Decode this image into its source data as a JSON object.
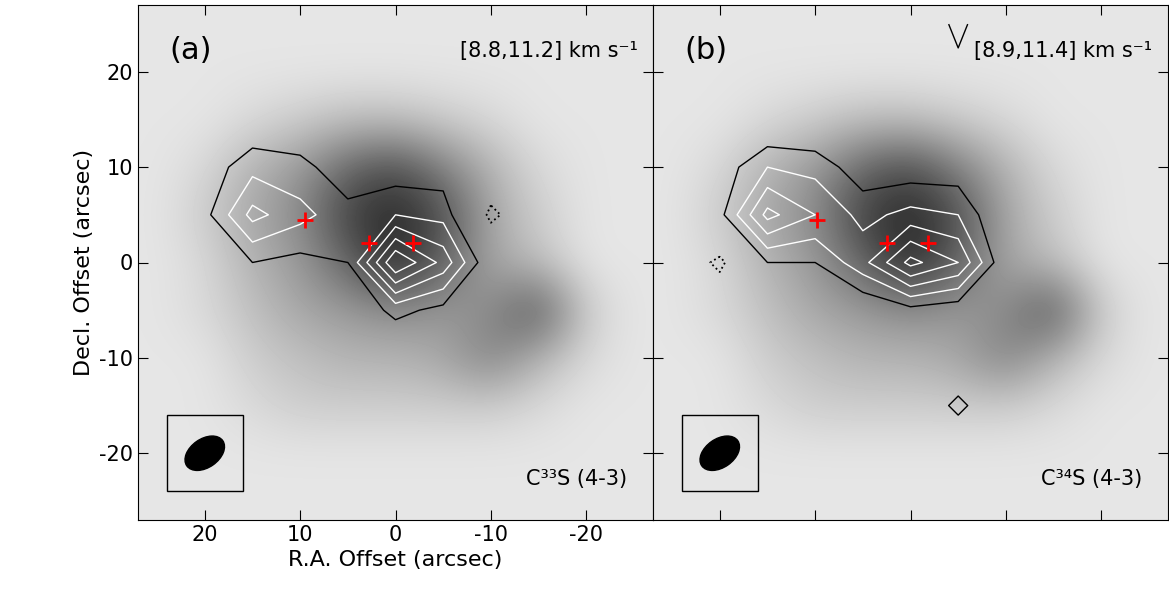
{
  "chart_data": [
    {
      "type": "contour_map",
      "panel_label": "(a)",
      "velocity_label": "[8.8,11.2] km s⁻¹",
      "molecule_label": "C³³S (4-3)",
      "xlabel": "R.A. Offset (arcsec)",
      "ylabel": "Decl. Offset (arcsec)",
      "xlim": [
        27,
        -27
      ],
      "ylim": [
        -27,
        27
      ],
      "xticks": [
        20,
        10,
        0,
        -10,
        -20
      ],
      "yticks": [
        -20,
        -10,
        0,
        10,
        20
      ],
      "tick_labels": true,
      "grid_x": [
        25,
        20,
        15,
        10,
        5,
        0,
        -5,
        -10,
        -15,
        -20,
        -25
      ],
      "grid_y": [
        25,
        20,
        15,
        10,
        5,
        0,
        -5,
        -10,
        -15,
        -20,
        -25
      ],
      "image_range": [
        0,
        1
      ],
      "image": [
        [
          0.1,
          0.1,
          0.1,
          0.1,
          0.1,
          0.1,
          0.1,
          0.1,
          0.1,
          0.1,
          0.1
        ],
        [
          0.1,
          0.1,
          0.1,
          0.1,
          0.1,
          0.1,
          0.1,
          0.1,
          0.1,
          0.1,
          0.1
        ],
        [
          0.1,
          0.1,
          0.15,
          0.2,
          0.25,
          0.25,
          0.2,
          0.15,
          0.1,
          0.1,
          0.1
        ],
        [
          0.1,
          0.15,
          0.3,
          0.4,
          0.6,
          0.7,
          0.5,
          0.3,
          0.15,
          0.1,
          0.1
        ],
        [
          0.1,
          0.2,
          0.35,
          0.45,
          0.75,
          0.85,
          0.7,
          0.35,
          0.2,
          0.1,
          0.1
        ],
        [
          0.1,
          0.15,
          0.3,
          0.4,
          0.6,
          0.85,
          0.6,
          0.35,
          0.25,
          0.1,
          0.1
        ],
        [
          0.1,
          0.15,
          0.25,
          0.35,
          0.4,
          0.45,
          0.4,
          0.45,
          0.7,
          0.2,
          0.1
        ],
        [
          0.1,
          0.1,
          0.2,
          0.25,
          0.3,
          0.3,
          0.35,
          0.5,
          0.3,
          0.15,
          0.1
        ],
        [
          0.1,
          0.1,
          0.15,
          0.2,
          0.2,
          0.2,
          0.2,
          0.2,
          0.15,
          0.1,
          0.1
        ],
        [
          0.1,
          0.1,
          0.1,
          0.1,
          0.1,
          0.1,
          0.1,
          0.1,
          0.1,
          0.1,
          0.1
        ],
        [
          0.1,
          0.1,
          0.1,
          0.1,
          0.1,
          0.1,
          0.1,
          0.1,
          0.1,
          0.1,
          0.1
        ]
      ],
      "contour_levels": [
        -0.2,
        0.2,
        0.35,
        0.5,
        0.65,
        0.8
      ],
      "contour": [
        [
          0,
          0,
          0,
          0,
          0,
          0,
          0,
          0,
          0,
          0,
          0
        ],
        [
          0,
          0,
          0,
          0,
          0,
          0,
          0,
          0,
          0,
          0,
          0
        ],
        [
          0,
          0,
          0.05,
          0.05,
          0,
          0,
          0,
          0,
          0,
          0,
          0
        ],
        [
          0,
          0.1,
          0.3,
          0.25,
          0.1,
          0.1,
          0.1,
          0,
          0,
          0,
          0
        ],
        [
          0,
          0.15,
          0.55,
          0.4,
          0.25,
          0.35,
          0.3,
          -0.25,
          0,
          0,
          0
        ],
        [
          0,
          0.05,
          0.2,
          0.15,
          0.2,
          0.95,
          0.6,
          0.05,
          0,
          0,
          0
        ],
        [
          0,
          0,
          0,
          -0.2,
          0.05,
          0.25,
          0.15,
          0,
          0,
          0,
          0
        ],
        [
          0,
          0,
          0,
          0,
          0,
          0,
          0,
          0,
          0,
          0,
          0
        ],
        [
          0,
          0,
          0,
          0,
          0,
          0,
          0,
          0,
          0,
          0,
          0
        ],
        [
          0,
          0,
          0,
          0,
          0,
          0,
          0,
          0,
          0,
          0,
          0
        ],
        [
          0,
          0,
          0,
          0,
          0,
          0,
          0,
          0,
          0,
          0,
          0
        ]
      ],
      "markers_x": [
        9.5,
        2.8,
        -1.8
      ],
      "markers_y": [
        4.5,
        2.0,
        2.0
      ],
      "marker": "plus",
      "color": "#ff0000",
      "beam": {
        "x": 20,
        "y": -20,
        "major": 4.6,
        "minor": 3.0,
        "angle": -35,
        "box": 8
      }
    },
    {
      "type": "contour_map",
      "panel_label": "(b)",
      "velocity_label": "[8.9,11.4] km s⁻¹",
      "molecule_label": "C³⁴S (4-3)",
      "xlim": [
        27,
        -27
      ],
      "ylim": [
        -27,
        27
      ],
      "xticks": [
        20,
        10,
        0,
        -10,
        -20
      ],
      "yticks": [
        -20,
        -10,
        0,
        10,
        20
      ],
      "tick_labels": false,
      "grid_x": [
        25,
        20,
        15,
        10,
        5,
        0,
        -5,
        -10,
        -15,
        -20,
        -25
      ],
      "grid_y": [
        25,
        20,
        15,
        10,
        5,
        0,
        -5,
        -10,
        -15,
        -20,
        -25
      ],
      "image_range": [
        0,
        1
      ],
      "image": [
        [
          0.1,
          0.1,
          0.1,
          0.1,
          0.1,
          0.1,
          0.1,
          0.1,
          0.1,
          0.1,
          0.1
        ],
        [
          0.1,
          0.1,
          0.1,
          0.1,
          0.1,
          0.1,
          0.1,
          0.1,
          0.1,
          0.1,
          0.1
        ],
        [
          0.1,
          0.1,
          0.15,
          0.2,
          0.25,
          0.25,
          0.2,
          0.15,
          0.1,
          0.1,
          0.1
        ],
        [
          0.1,
          0.15,
          0.3,
          0.4,
          0.6,
          0.7,
          0.5,
          0.3,
          0.15,
          0.1,
          0.1
        ],
        [
          0.1,
          0.2,
          0.35,
          0.45,
          0.75,
          0.85,
          0.7,
          0.35,
          0.2,
          0.1,
          0.1
        ],
        [
          0.1,
          0.15,
          0.3,
          0.4,
          0.6,
          0.85,
          0.6,
          0.35,
          0.25,
          0.1,
          0.1
        ],
        [
          0.1,
          0.15,
          0.25,
          0.35,
          0.4,
          0.45,
          0.4,
          0.45,
          0.7,
          0.2,
          0.1
        ],
        [
          0.1,
          0.1,
          0.2,
          0.25,
          0.3,
          0.3,
          0.35,
          0.5,
          0.3,
          0.15,
          0.1
        ],
        [
          0.1,
          0.1,
          0.15,
          0.2,
          0.2,
          0.2,
          0.2,
          0.2,
          0.15,
          0.1,
          0.1
        ],
        [
          0.1,
          0.1,
          0.1,
          0.1,
          0.1,
          0.1,
          0.1,
          0.1,
          0.1,
          0.1,
          0.1
        ],
        [
          0.1,
          0.1,
          0.1,
          0.1,
          0.1,
          0.1,
          0.1,
          0.1,
          0.1,
          0.1,
          0.1
        ]
      ],
      "contour_levels": [
        -0.2,
        0.2,
        0.35,
        0.5,
        0.65,
        0.8
      ],
      "contour": [
        [
          0,
          0,
          0,
          0,
          0,
          0,
          0.25,
          0,
          0,
          0,
          0
        ],
        [
          0,
          0,
          0,
          0,
          0,
          0,
          0.15,
          0,
          0,
          0,
          0
        ],
        [
          0,
          0,
          0,
          0,
          0,
          0,
          0,
          0,
          0,
          0,
          0
        ],
        [
          0,
          0.1,
          0.35,
          0.3,
          0.1,
          0.1,
          0.1,
          0,
          0,
          0,
          0
        ],
        [
          0,
          0.15,
          0.7,
          0.5,
          0.3,
          0.4,
          0.35,
          0,
          0,
          0,
          0
        ],
        [
          0,
          -0.25,
          0.2,
          0.2,
          0.45,
          0.85,
          0.65,
          0.05,
          0,
          0,
          0
        ],
        [
          0,
          0,
          0,
          0,
          0.05,
          0.15,
          0.1,
          0,
          0,
          0,
          0
        ],
        [
          0,
          0,
          0,
          0,
          0,
          0,
          0,
          0,
          0,
          0,
          0
        ],
        [
          0,
          0,
          0,
          0,
          0,
          0,
          0.25,
          0,
          0,
          0,
          0
        ],
        [
          0,
          0,
          0,
          0,
          0,
          0,
          0,
          0,
          0,
          0,
          0
        ],
        [
          0,
          0,
          0,
          0,
          0,
          0,
          0,
          0,
          0,
          0,
          0
        ]
      ],
      "markers_x": [
        9.8,
        2.5,
        -1.8
      ],
      "markers_y": [
        4.5,
        2.0,
        2.0
      ],
      "marker": "plus",
      "color": "#ff0000",
      "beam": {
        "x": 20,
        "y": -20,
        "major": 4.6,
        "minor": 3.0,
        "angle": -35,
        "box": 8
      }
    }
  ]
}
